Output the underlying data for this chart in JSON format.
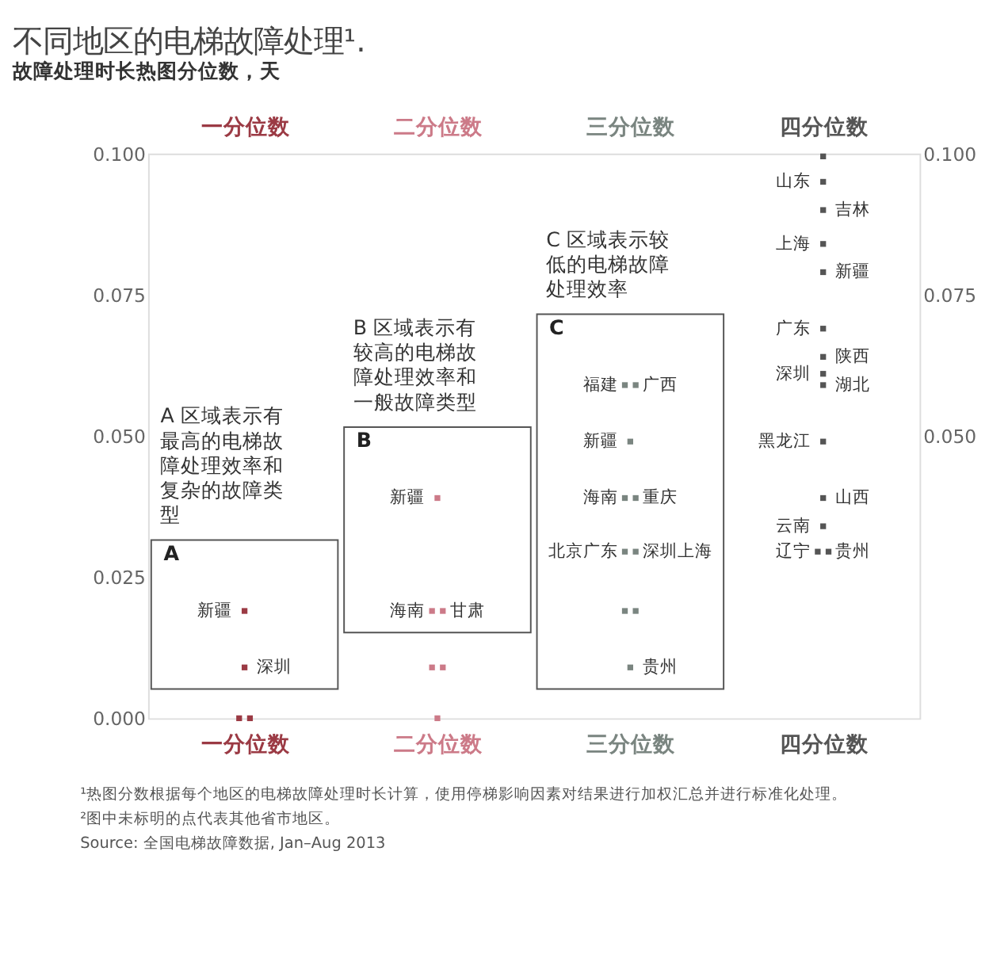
{
  "chart_data": {
    "type": "scatter",
    "title": "不同地区的电梯故障处理¹.",
    "subtitle": "故障处理时长热图分位数，天",
    "categories": [
      "一分位数",
      "二分位数",
      "三分位数",
      "四分位数"
    ],
    "series": [
      {
        "color": "#9b3a44",
        "x": [
          "一分位数",
          "一分位数",
          "一分位数",
          "一分位数"
        ],
        "values": [
          0.019,
          0.009,
          0,
          0
        ],
        "value_labels": [
          "新疆",
          "深圳",
          null,
          null
        ]
      },
      {
        "color": "#cc7a88",
        "x": [
          "二分位数",
          "二分位数",
          "二分位数",
          "二分位数",
          "二分位数",
          "二分位数"
        ],
        "values": [
          0.039,
          0.019,
          0.019,
          0.009,
          0.009,
          0
        ],
        "value_labels": [
          "新疆",
          "海南",
          "甘肃",
          null,
          null,
          null
        ]
      },
      {
        "color": "#7a8580",
        "x": [
          "三分位数",
          "三分位数",
          "三分位数",
          "三分位数",
          "三分位数",
          "三分位数",
          "三分位数",
          "三分位数",
          "三分位数",
          "三分位数"
        ],
        "values": [
          0.059,
          0.059,
          0.049,
          0.039,
          0.039,
          0.0295,
          0.0295,
          0.019,
          0.019,
          0.009
        ],
        "value_labels": [
          "福建",
          "广西",
          "新疆",
          "海南",
          "重庆",
          "北京广东",
          "深圳上海",
          null,
          null,
          "贵州"
        ]
      },
      {
        "color": "#555555",
        "x": [
          "四分位数",
          "四分位数",
          "四分位数",
          "四分位数",
          "四分位数",
          "四分位数",
          "四分位数",
          "四分位数",
          "四分位数",
          "四分位数",
          "四分位数",
          "四分位数",
          "四分位数",
          "四分位数"
        ],
        "values": [
          0.0995,
          0.095,
          0.09,
          0.084,
          0.079,
          0.069,
          0.064,
          0.061,
          0.059,
          0.049,
          0.039,
          0.034,
          0.0295,
          0.0295
        ],
        "value_labels": [
          null,
          "山东",
          "吉林",
          "上海",
          "新疆",
          "广东",
          "陕西",
          "深圳",
          "湖北",
          "黑龙江",
          "山西",
          "云南",
          "辽宁",
          "贵州"
        ]
      }
    ],
    "ylim": [
      0,
      0.1
    ],
    "yticks": [
      {
        "value": 0,
        "label": "0.000"
      },
      {
        "value": 0.025,
        "label": "0.025"
      },
      {
        "value": 0.05,
        "label": "0.050"
      },
      {
        "value": 0.075,
        "label": "0.075"
      },
      {
        "value": 0.1,
        "label": "0.100"
      }
    ],
    "y2lim": [
      0,
      0.1
    ],
    "y2ticks": [
      {
        "value": 0.05,
        "label": "0.050"
      },
      {
        "value": 0.075,
        "label": "0.075"
      },
      {
        "value": 0.1,
        "label": "0.100"
      }
    ],
    "marker": "square",
    "grid": false,
    "annotations": [
      "A 区域表示有最高的电梯故障处理效率和复杂的故障类型",
      "A",
      "B 区域表示有较高的电梯故障处理效率和一般故障类型",
      "B",
      "C 区域表示较低的电梯故障处理效率",
      "C",
      "¹热图分数根据每个地区的电梯故障处理时长计算，使用停梯影响因素对结果进行加权汇总并进行标准化处理。",
      "²图中未标明的点代表其他省市地区。",
      "Source: 全国电梯故障数据, Jan–Aug 2013"
    ]
  }
}
